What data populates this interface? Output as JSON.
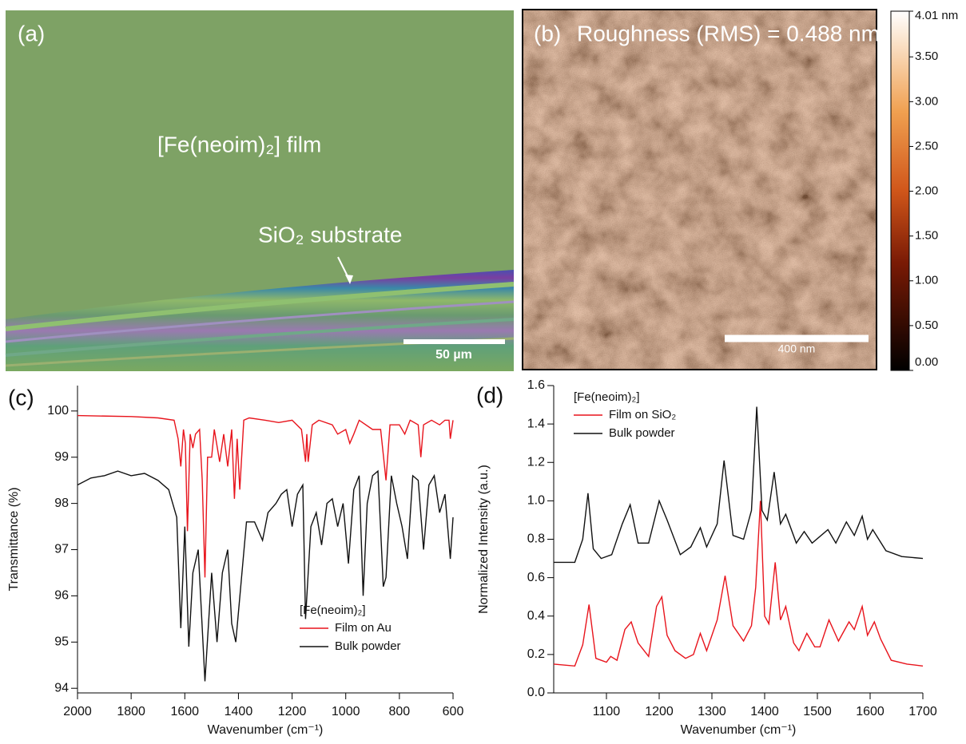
{
  "panel_a": {
    "label": "(a)",
    "film": "[Fe(neoim)₂] film",
    "substrate": "SiO₂ substrate",
    "scale_bar": "50 µm"
  },
  "panel_b": {
    "label": "(b)",
    "roughness": "Roughness (RMS) = 0.488 nm",
    "scale_bar": "400 nm",
    "colorbar": {
      "lim": [
        0,
        4.01
      ],
      "ticks": [
        {
          "value": 0,
          "label": "0.00"
        },
        {
          "value": 0.5,
          "label": "0.50"
        },
        {
          "value": 1,
          "label": "1.00"
        },
        {
          "value": 1.5,
          "label": "1.50"
        },
        {
          "value": 2,
          "label": "2.00"
        },
        {
          "value": 2.5,
          "label": "2.50"
        },
        {
          "value": 3,
          "label": "3.00"
        },
        {
          "value": 3.5,
          "label": "3.50"
        },
        {
          "value": 4.01,
          "label": "4.01 nm"
        }
      ]
    }
  },
  "chart_data": [
    {
      "type": "line",
      "panel_label": "(c)",
      "ylabel": "Transmittance (%)",
      "xlabel": "Wavenumber (cm⁻¹)",
      "xlim": [
        2000,
        600
      ],
      "ylim": [
        93.9,
        100.55
      ],
      "xticks": [
        2000,
        1800,
        1600,
        1400,
        1200,
        1000,
        800,
        600
      ],
      "yticks": [
        94,
        95,
        96,
        97,
        98,
        99,
        100
      ],
      "legend_title": "[Fe(neoim)₂]",
      "series": [
        {
          "name": "Film on Au",
          "color": "#e8141c",
          "x": [
            2000,
            1800,
            1700,
            1640,
            1625,
            1615,
            1605,
            1598,
            1590,
            1580,
            1570,
            1560,
            1545,
            1535,
            1525,
            1515,
            1500,
            1490,
            1470,
            1455,
            1440,
            1425,
            1415,
            1405,
            1395,
            1380,
            1360,
            1300,
            1250,
            1200,
            1165,
            1150,
            1145,
            1140,
            1125,
            1100,
            1050,
            1030,
            1000,
            985,
            970,
            950,
            900,
            870,
            850,
            835,
            800,
            780,
            760,
            730,
            720,
            710,
            680,
            650,
            630,
            615,
            610,
            600
          ],
          "values": [
            99.9,
            99.88,
            99.85,
            99.8,
            99.4,
            98.8,
            99.6,
            99.3,
            97.4,
            99.5,
            99.2,
            99.5,
            99.6,
            98.5,
            96.4,
            99.0,
            99.0,
            99.6,
            98.9,
            99.5,
            98.8,
            99.6,
            98.1,
            99.4,
            98.3,
            99.8,
            99.85,
            99.8,
            99.75,
            99.8,
            99.6,
            98.9,
            99.5,
            98.9,
            99.7,
            99.8,
            99.7,
            99.5,
            99.6,
            99.3,
            99.5,
            99.8,
            99.6,
            99.6,
            98.5,
            99.7,
            99.7,
            99.5,
            99.8,
            99.7,
            99.0,
            99.7,
            99.8,
            99.7,
            99.8,
            99.8,
            99.4,
            99.8
          ]
        },
        {
          "name": "Bulk powder",
          "color": "#111111",
          "x": [
            2000,
            1950,
            1900,
            1850,
            1800,
            1750,
            1700,
            1660,
            1630,
            1615,
            1600,
            1585,
            1570,
            1550,
            1525,
            1500,
            1480,
            1460,
            1440,
            1425,
            1410,
            1390,
            1370,
            1340,
            1310,
            1290,
            1260,
            1240,
            1220,
            1200,
            1180,
            1160,
            1150,
            1130,
            1110,
            1090,
            1070,
            1050,
            1030,
            1010,
            990,
            970,
            950,
            935,
            920,
            900,
            880,
            860,
            850,
            830,
            810,
            790,
            770,
            750,
            730,
            710,
            690,
            670,
            650,
            630,
            610,
            600
          ],
          "values": [
            98.4,
            98.55,
            98.6,
            98.7,
            98.6,
            98.65,
            98.5,
            98.3,
            97.7,
            95.3,
            97.5,
            94.9,
            96.5,
            97.0,
            94.15,
            96.5,
            95.0,
            96.5,
            97.0,
            95.4,
            95.0,
            96.3,
            97.6,
            97.6,
            97.2,
            97.8,
            98.0,
            98.2,
            98.3,
            97.5,
            98.2,
            98.4,
            95.5,
            97.5,
            97.8,
            97.1,
            98.0,
            98.1,
            97.5,
            98.0,
            96.7,
            98.3,
            98.6,
            96.0,
            98.0,
            98.6,
            98.7,
            96.2,
            96.4,
            98.6,
            98.0,
            97.5,
            96.8,
            98.6,
            98.5,
            97.0,
            98.4,
            98.6,
            97.8,
            98.2,
            96.8,
            97.7
          ]
        }
      ]
    },
    {
      "type": "line",
      "panel_label": "(d)",
      "ylabel": "Normalized Intensity (a.u.)",
      "xlabel": "Wavenumber (cm⁻¹)",
      "xlim": [
        1000,
        1700
      ],
      "ylim": [
        0,
        1.6
      ],
      "xticks": [
        1100,
        1200,
        1300,
        1400,
        1500,
        1600,
        1700
      ],
      "yticks": [
        {
          "value": 0,
          "label": "0.0"
        },
        0.2,
        0.4,
        0.6,
        0.8,
        {
          "value": 1,
          "label": "1.0"
        },
        1.2,
        1.4,
        1.6
      ],
      "legend_title": "[Fe(neoim)₂]",
      "series": [
        {
          "name": "Film on SiO₂",
          "color": "#e8141c",
          "x": [
            1000,
            1040,
            1055,
            1067,
            1080,
            1100,
            1108,
            1120,
            1135,
            1147,
            1160,
            1180,
            1195,
            1205,
            1215,
            1230,
            1250,
            1265,
            1278,
            1290,
            1310,
            1325,
            1340,
            1360,
            1375,
            1383,
            1392,
            1400,
            1408,
            1420,
            1430,
            1440,
            1455,
            1465,
            1480,
            1495,
            1505,
            1522,
            1540,
            1560,
            1570,
            1585,
            1595,
            1608,
            1620,
            1640,
            1670,
            1700
          ],
          "values": [
            0.15,
            0.14,
            0.25,
            0.46,
            0.18,
            0.16,
            0.19,
            0.17,
            0.33,
            0.37,
            0.26,
            0.19,
            0.45,
            0.5,
            0.3,
            0.22,
            0.18,
            0.2,
            0.31,
            0.22,
            0.38,
            0.61,
            0.35,
            0.27,
            0.35,
            0.55,
            1.0,
            0.4,
            0.36,
            0.68,
            0.38,
            0.45,
            0.26,
            0.22,
            0.31,
            0.24,
            0.24,
            0.38,
            0.27,
            0.37,
            0.33,
            0.45,
            0.3,
            0.37,
            0.28,
            0.17,
            0.15,
            0.14
          ]
        },
        {
          "name": "Bulk powder",
          "color": "#111111",
          "x": [
            1000,
            1040,
            1055,
            1065,
            1075,
            1090,
            1110,
            1130,
            1145,
            1160,
            1180,
            1200,
            1215,
            1240,
            1260,
            1278,
            1290,
            1310,
            1323,
            1340,
            1360,
            1375,
            1385,
            1395,
            1405,
            1418,
            1430,
            1440,
            1460,
            1475,
            1490,
            1520,
            1535,
            1555,
            1570,
            1585,
            1595,
            1605,
            1630,
            1660,
            1700
          ],
          "values": [
            0.68,
            0.68,
            0.8,
            1.04,
            0.75,
            0.7,
            0.72,
            0.88,
            0.98,
            0.78,
            0.78,
            1.0,
            0.9,
            0.72,
            0.76,
            0.86,
            0.76,
            0.88,
            1.21,
            0.82,
            0.8,
            0.95,
            1.49,
            0.95,
            0.9,
            1.15,
            0.88,
            0.93,
            0.78,
            0.84,
            0.78,
            0.85,
            0.78,
            0.89,
            0.82,
            0.92,
            0.8,
            0.85,
            0.74,
            0.71,
            0.7
          ]
        }
      ]
    }
  ]
}
